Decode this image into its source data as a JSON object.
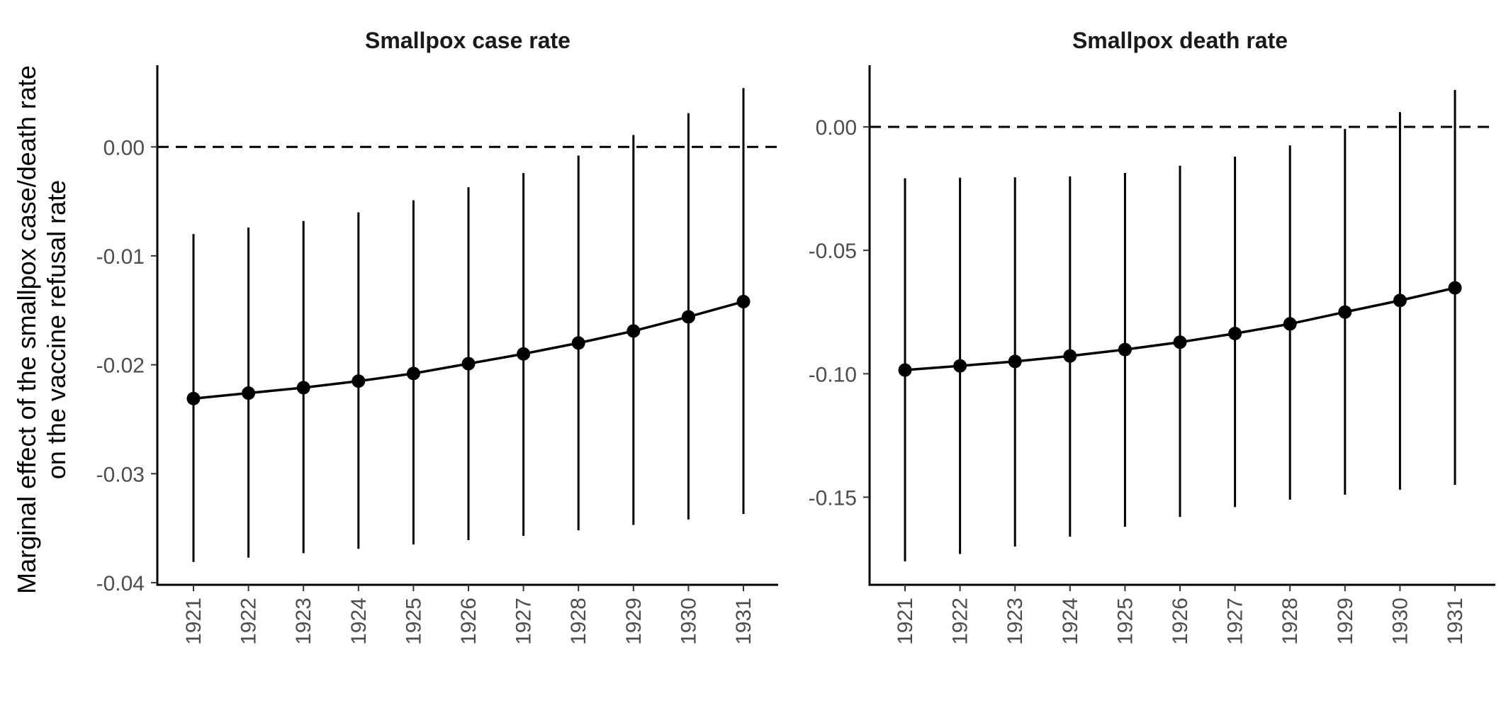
{
  "figure": {
    "ylabel_line1": "Marginal effect of the smallpox case/death rate",
    "ylabel_line2": "on the vaccine refusal rate"
  },
  "chart_data": [
    {
      "type": "line",
      "title": "Smallpox case rate",
      "xlabel": "",
      "ylabel": "Marginal effect of the smallpox case/death rate on the vaccine refusal rate",
      "x": [
        "1921",
        "1922",
        "1923",
        "1924",
        "1925",
        "1926",
        "1927",
        "1928",
        "1929",
        "1930",
        "1931"
      ],
      "series": [
        {
          "values": [
            -0.0231,
            -0.0226,
            -0.0221,
            -0.0215,
            -0.0208,
            -0.0199,
            -0.019,
            -0.018,
            -0.0169,
            -0.0156,
            -0.0142
          ],
          "lower": [
            -0.0381,
            -0.0377,
            -0.0373,
            -0.0369,
            -0.0365,
            -0.0361,
            -0.0357,
            -0.0352,
            -0.0347,
            -0.0342,
            -0.0337
          ],
          "upper": [
            -0.008,
            -0.0074,
            -0.0068,
            -0.006,
            -0.0049,
            -0.0037,
            -0.0024,
            -0.0008,
            0.0011,
            0.0031,
            0.0054
          ]
        }
      ],
      "yticks": [
        0.0,
        -0.01,
        -0.02,
        -0.03,
        -0.04
      ],
      "ytick_labels": [
        "0.00",
        "-0.01",
        "-0.02",
        "-0.03",
        "-0.04"
      ],
      "ylim": [
        -0.0402,
        0.0075
      ],
      "reference_line": 0,
      "grid": false
    },
    {
      "type": "line",
      "title": "Smallpox death rate",
      "xlabel": "",
      "ylabel": "Marginal effect of the smallpox case/death rate on the vaccine refusal rate",
      "x": [
        "1921",
        "1922",
        "1923",
        "1924",
        "1925",
        "1926",
        "1927",
        "1928",
        "1929",
        "1930",
        "1931"
      ],
      "series": [
        {
          "values": [
            -0.0985,
            -0.0968,
            -0.095,
            -0.0928,
            -0.0902,
            -0.0872,
            -0.0837,
            -0.0798,
            -0.075,
            -0.0703,
            -0.0652
          ],
          "lower": [
            -0.176,
            -0.173,
            -0.17,
            -0.166,
            -0.162,
            -0.158,
            -0.154,
            -0.151,
            -0.149,
            -0.147,
            -0.145
          ],
          "upper": [
            -0.0208,
            -0.0206,
            -0.0204,
            -0.02,
            -0.0186,
            -0.0157,
            -0.012,
            -0.0075,
            -0.0008,
            0.006,
            0.015
          ]
        }
      ],
      "yticks": [
        0.0,
        -0.05,
        -0.1,
        -0.15
      ],
      "ytick_labels": [
        "0.00",
        "-0.05",
        "-0.10",
        "-0.15"
      ],
      "ylim": [
        -0.1855,
        0.025
      ],
      "reference_line": 0,
      "grid": false
    }
  ]
}
